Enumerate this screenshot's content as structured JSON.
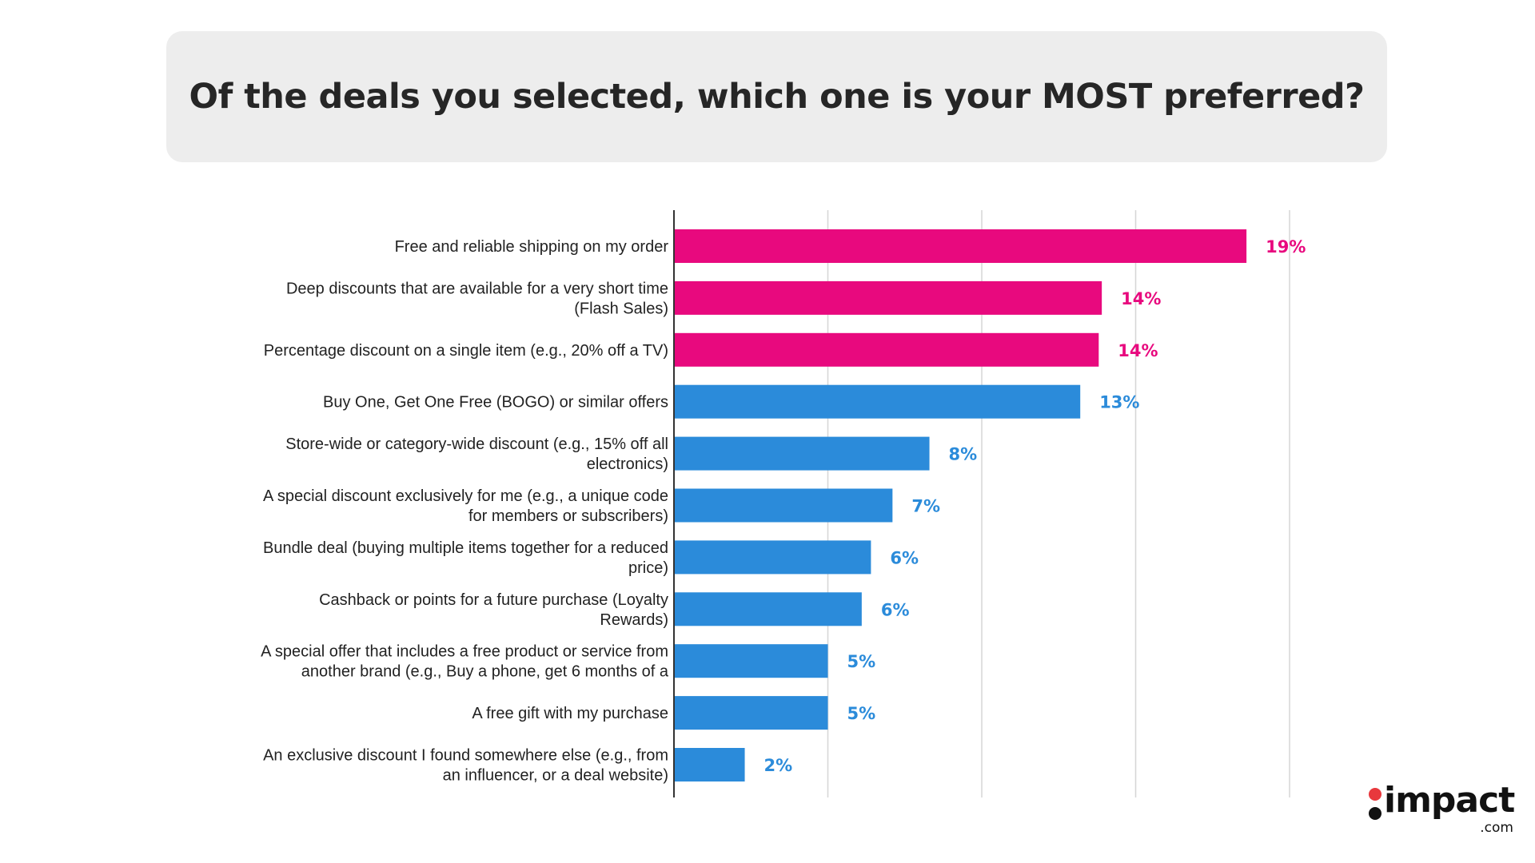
{
  "title": "Of the deals you selected, which one is your MOST preferred?",
  "colors": {
    "highlight": "#E8097E",
    "default": "#2B8BDA",
    "axis": "#333333",
    "grid": "#d6d6d6",
    "title_bg": "#ededed"
  },
  "chart_data": {
    "type": "bar",
    "orientation": "horizontal",
    "title": "Of the deals you selected, which one is your MOST preferred?",
    "xlim": [
      0,
      20
    ],
    "grid": true,
    "gridlines_at": [
      0,
      5,
      10,
      15,
      20
    ],
    "categories": [
      "Free and reliable shipping on my order",
      "Deep discounts that are available for a very short time (Flash Sales)",
      "Percentage discount on a single item (e.g., 20% off a TV)",
      "Buy One, Get One Free (BOGO) or similar offers",
      "Store-wide or category-wide discount (e.g., 15% off all electronics)",
      "A special discount exclusively for me (e.g., a unique code for members or subscribers)",
      "Bundle deal (buying multiple items together for a reduced price)",
      "Cashback or points for a future purchase (Loyalty Rewards)",
      "A special offer that includes a free product or service from another brand (e.g., Buy a phone, get 6 months of a",
      "A free gift with my purchase",
      "An exclusive discount I found somewhere else (e.g., from an influencer, or a deal website)"
    ],
    "label_lines": [
      [
        "Free and reliable shipping on my order"
      ],
      [
        "Deep discounts that are available for a very short time",
        "(Flash Sales)"
      ],
      [
        "Percentage discount on a single item (e.g., 20% off a TV)"
      ],
      [
        "Buy One, Get One Free (BOGO) or similar offers"
      ],
      [
        "Store-wide or category-wide discount (e.g., 15% off all",
        "electronics)"
      ],
      [
        "A special discount exclusively for me (e.g., a unique code",
        "for members or subscribers)"
      ],
      [
        "Bundle deal (buying multiple items together for a reduced",
        "price)"
      ],
      [
        "Cashback or points for a future purchase (Loyalty",
        "Rewards)"
      ],
      [
        "A special offer that includes a free product or service from",
        "another brand (e.g., Buy a phone, get 6 months of a"
      ],
      [
        "A free gift with my purchase"
      ],
      [
        "An exclusive discount I found somewhere else (e.g., from",
        "an influencer, or a deal website)"
      ]
    ],
    "values": [
      18.6,
      13.9,
      13.8,
      13.2,
      8.3,
      7.1,
      6.4,
      6.1,
      5.0,
      5.0,
      2.3
    ],
    "value_labels": [
      "19%",
      "14%",
      "14%",
      "13%",
      "8%",
      "7%",
      "6%",
      "6%",
      "5%",
      "5%",
      "2%"
    ],
    "highlighted": [
      true,
      true,
      true,
      false,
      false,
      false,
      false,
      false,
      false,
      false,
      false
    ]
  },
  "logo": {
    "word": "impact",
    "suffix": ".com",
    "dot_top_color": "#E8383D",
    "dot_bottom_color": "#111111"
  }
}
